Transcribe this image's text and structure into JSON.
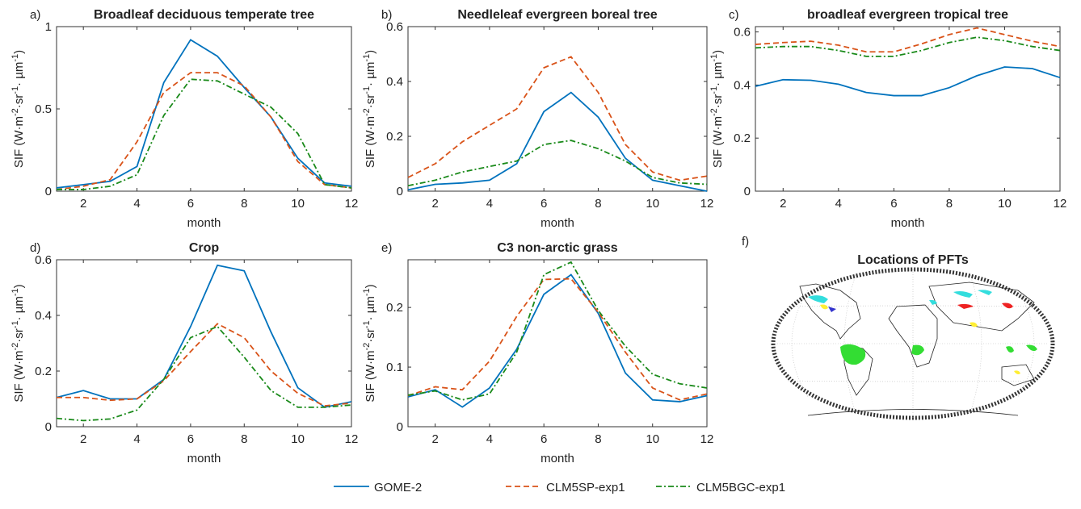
{
  "chart_data": [
    {
      "type": "line",
      "panel": "a)",
      "title": "Broadleaf deciduous temperate tree",
      "xlabel": "month",
      "ylabel": [
        "SIF (W·m",
        "-2",
        "·sr",
        "-1",
        "· µm",
        "-1",
        ")"
      ],
      "x": [
        1,
        2,
        3,
        4,
        5,
        6,
        7,
        8,
        9,
        10,
        11,
        12
      ],
      "xlim": [
        1,
        12
      ],
      "xticks": [
        2,
        4,
        6,
        8,
        10,
        12
      ],
      "ylim": [
        0,
        1
      ],
      "yticks": [
        0,
        0.5,
        1
      ],
      "series": [
        {
          "name": "GOME-2",
          "color": "#0072bd",
          "dash": "solid",
          "values": [
            0.02,
            0.04,
            0.06,
            0.15,
            0.66,
            0.92,
            0.82,
            0.63,
            0.45,
            0.2,
            0.05,
            0.03
          ]
        },
        {
          "name": "CLM5SP-exp1",
          "color": "#d95319",
          "dash": "dashed",
          "values": [
            0.01,
            0.03,
            0.07,
            0.3,
            0.6,
            0.72,
            0.72,
            0.64,
            0.45,
            0.18,
            0.04,
            0.02
          ]
        },
        {
          "name": "CLM5BGC-exp1",
          "color": "#1a8a1a",
          "dash": "dashdot",
          "values": [
            0.01,
            0.01,
            0.03,
            0.1,
            0.46,
            0.68,
            0.67,
            0.59,
            0.51,
            0.35,
            0.04,
            0.02
          ]
        }
      ]
    },
    {
      "type": "line",
      "panel": "b)",
      "title": "Needleleaf evergreen boreal tree",
      "xlabel": "month",
      "ylabel": [
        "SIF (W·m",
        "-2",
        "·sr",
        "-1",
        "· µm",
        "-1",
        ")"
      ],
      "x": [
        1,
        2,
        3,
        4,
        5,
        6,
        7,
        8,
        9,
        10,
        11,
        12
      ],
      "xlim": [
        1,
        12
      ],
      "xticks": [
        2,
        4,
        6,
        8,
        10,
        12
      ],
      "ylim": [
        0,
        0.6
      ],
      "yticks": [
        0,
        0.2,
        0.4,
        0.6
      ],
      "series": [
        {
          "name": "GOME-2",
          "color": "#0072bd",
          "dash": "solid",
          "values": [
            0.005,
            0.025,
            0.03,
            0.04,
            0.1,
            0.29,
            0.36,
            0.27,
            0.12,
            0.04,
            0.02,
            0.0
          ]
        },
        {
          "name": "CLM5SP-exp1",
          "color": "#d95319",
          "dash": "dashed",
          "values": [
            0.05,
            0.1,
            0.18,
            0.24,
            0.3,
            0.45,
            0.49,
            0.36,
            0.17,
            0.07,
            0.04,
            0.055
          ]
        },
        {
          "name": "CLM5BGC-exp1",
          "color": "#1a8a1a",
          "dash": "dashdot",
          "values": [
            0.02,
            0.04,
            0.07,
            0.09,
            0.11,
            0.17,
            0.185,
            0.155,
            0.11,
            0.05,
            0.03,
            0.025
          ]
        }
      ]
    },
    {
      "type": "line",
      "panel": "c)",
      "title": "broadleaf evergreen tropical tree",
      "xlabel": "month",
      "ylabel": [
        "SIF (W·m",
        "-2",
        "·sr",
        "-1",
        "· µm",
        "-1",
        ")"
      ],
      "x": [
        1,
        2,
        3,
        4,
        5,
        6,
        7,
        8,
        9,
        10,
        11,
        12
      ],
      "xlim": [
        1,
        12
      ],
      "xticks": [
        2,
        4,
        6,
        8,
        10,
        12
      ],
      "ylim": [
        0,
        0.62
      ],
      "yticks": [
        0,
        0.2,
        0.4,
        0.6
      ],
      "series": [
        {
          "name": "GOME-2",
          "color": "#0072bd",
          "dash": "solid",
          "values": [
            0.395,
            0.42,
            0.418,
            0.403,
            0.372,
            0.36,
            0.36,
            0.39,
            0.435,
            0.468,
            0.462,
            0.428
          ]
        },
        {
          "name": "CLM5SP-exp1",
          "color": "#d95319",
          "dash": "dashed",
          "values": [
            0.553,
            0.56,
            0.565,
            0.55,
            0.525,
            0.525,
            0.555,
            0.59,
            0.615,
            0.59,
            0.565,
            0.545
          ]
        },
        {
          "name": "CLM5BGC-exp1",
          "color": "#1a8a1a",
          "dash": "dashdot",
          "values": [
            0.54,
            0.545,
            0.545,
            0.53,
            0.508,
            0.508,
            0.53,
            0.56,
            0.58,
            0.567,
            0.545,
            0.53
          ]
        }
      ]
    },
    {
      "type": "line",
      "panel": "d)",
      "title": "Crop",
      "xlabel": "month",
      "ylabel": [
        "SIF (W·m",
        "-2",
        "·sr",
        "-1",
        "· µm",
        "-1",
        ")"
      ],
      "x": [
        1,
        2,
        3,
        4,
        5,
        6,
        7,
        8,
        9,
        10,
        11,
        12
      ],
      "xlim": [
        1,
        12
      ],
      "xticks": [
        2,
        4,
        6,
        8,
        10,
        12
      ],
      "ylim": [
        0,
        0.6
      ],
      "yticks": [
        0,
        0.2,
        0.4,
        0.6
      ],
      "series": [
        {
          "name": "GOME-2",
          "color": "#0072bd",
          "dash": "solid",
          "values": [
            0.105,
            0.13,
            0.1,
            0.1,
            0.17,
            0.36,
            0.58,
            0.56,
            0.34,
            0.14,
            0.07,
            0.09
          ]
        },
        {
          "name": "CLM5SP-exp1",
          "color": "#d95319",
          "dash": "dashed",
          "values": [
            0.105,
            0.105,
            0.095,
            0.1,
            0.165,
            0.27,
            0.37,
            0.32,
            0.2,
            0.12,
            0.075,
            0.085
          ]
        },
        {
          "name": "CLM5BGC-exp1",
          "color": "#1a8a1a",
          "dash": "dashdot",
          "values": [
            0.03,
            0.022,
            0.028,
            0.06,
            0.17,
            0.32,
            0.36,
            0.25,
            0.13,
            0.07,
            0.07,
            0.078
          ]
        }
      ]
    },
    {
      "type": "line",
      "panel": "e)",
      "title": "C3 non-arctic grass",
      "xlabel": "month",
      "ylabel": [
        "SIF (W·m",
        "-2",
        "·sr",
        "-1",
        "· µm",
        "-1",
        ")"
      ],
      "x": [
        1,
        2,
        3,
        4,
        5,
        6,
        7,
        8,
        9,
        10,
        11,
        12
      ],
      "xlim": [
        1,
        12
      ],
      "xticks": [
        2,
        4,
        6,
        8,
        10,
        12
      ],
      "ylim": [
        0,
        0.28
      ],
      "yticks": [
        0,
        0.1,
        0.2
      ],
      "series": [
        {
          "name": "GOME-2",
          "color": "#0072bd",
          "dash": "solid",
          "values": [
            0.05,
            0.062,
            0.033,
            0.065,
            0.13,
            0.222,
            0.255,
            0.19,
            0.09,
            0.045,
            0.042,
            0.052
          ]
        },
        {
          "name": "CLM5SP-exp1",
          "color": "#d95319",
          "dash": "dashed",
          "values": [
            0.052,
            0.067,
            0.062,
            0.11,
            0.185,
            0.247,
            0.248,
            0.192,
            0.125,
            0.065,
            0.045,
            0.055
          ]
        },
        {
          "name": "CLM5BGC-exp1",
          "color": "#1a8a1a",
          "dash": "dashdot",
          "values": [
            0.053,
            0.06,
            0.045,
            0.055,
            0.125,
            0.255,
            0.276,
            0.195,
            0.135,
            0.088,
            0.072,
            0.065
          ]
        }
      ]
    },
    {
      "type": "map",
      "panel": "f)",
      "title": "Locations of PFTs"
    }
  ]
}
